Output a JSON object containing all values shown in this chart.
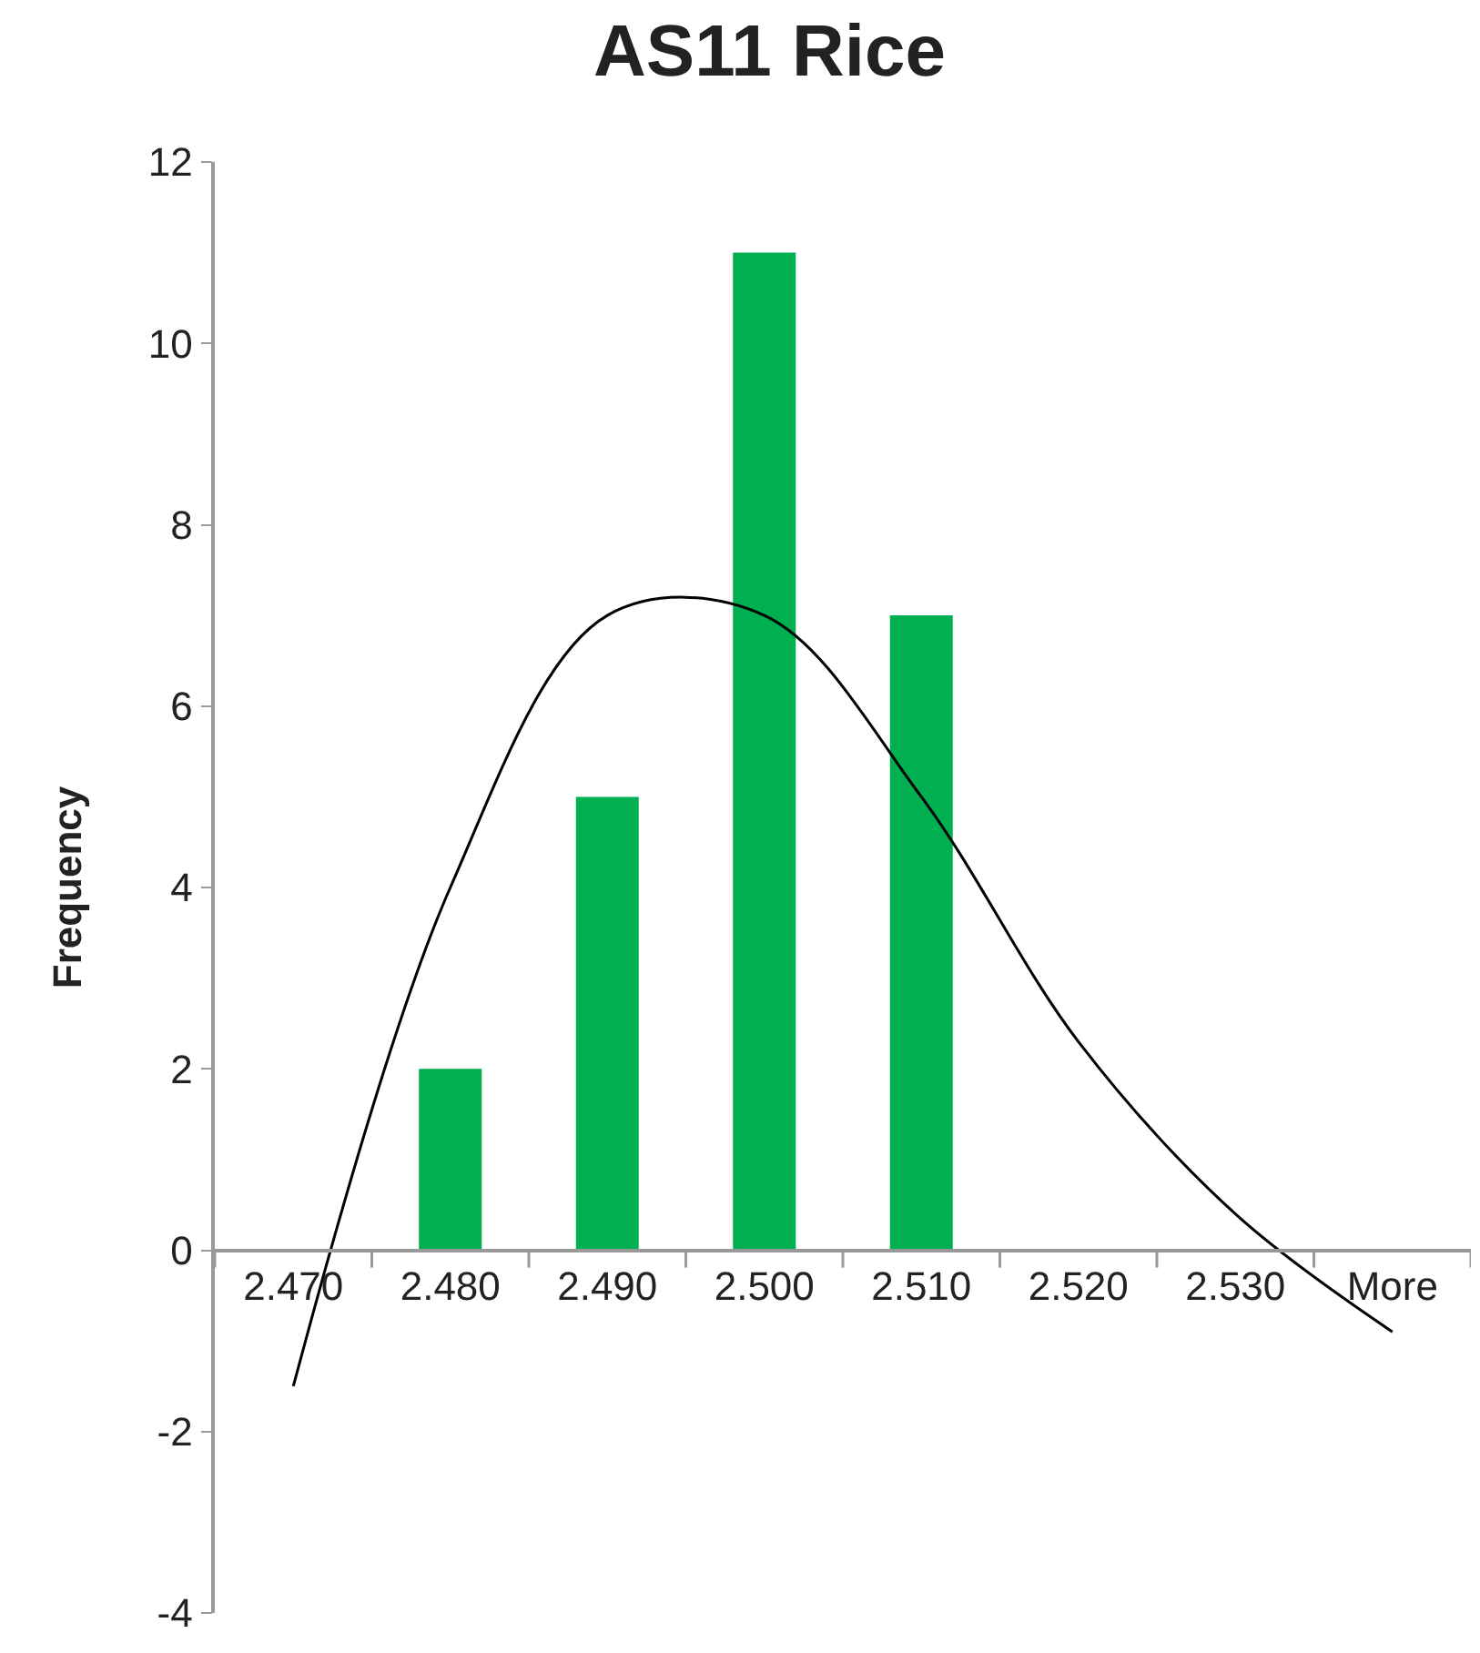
{
  "chart_data": {
    "type": "bar",
    "title": "AS11 Rice",
    "ylabel": "Frequency",
    "categories": [
      "2.470",
      "2.480",
      "2.490",
      "2.500",
      "2.510",
      "2.520",
      "2.530",
      "More"
    ],
    "series": [
      {
        "color": "#00b050",
        "values": [
          0,
          2,
          5,
          11,
          7,
          0,
          0,
          0
        ]
      },
      {
        "type": "line",
        "color": "#000000",
        "values": [
          -1.5,
          4.0,
          7.0,
          7.0,
          5.0,
          2.3,
          0.4,
          -0.9
        ]
      }
    ],
    "ylim": [
      -4,
      12
    ],
    "yticks": [
      -4,
      -2,
      0,
      2,
      4,
      6,
      8,
      10,
      12
    ],
    "grid": false,
    "marker": "none",
    "line_style": "solid"
  }
}
